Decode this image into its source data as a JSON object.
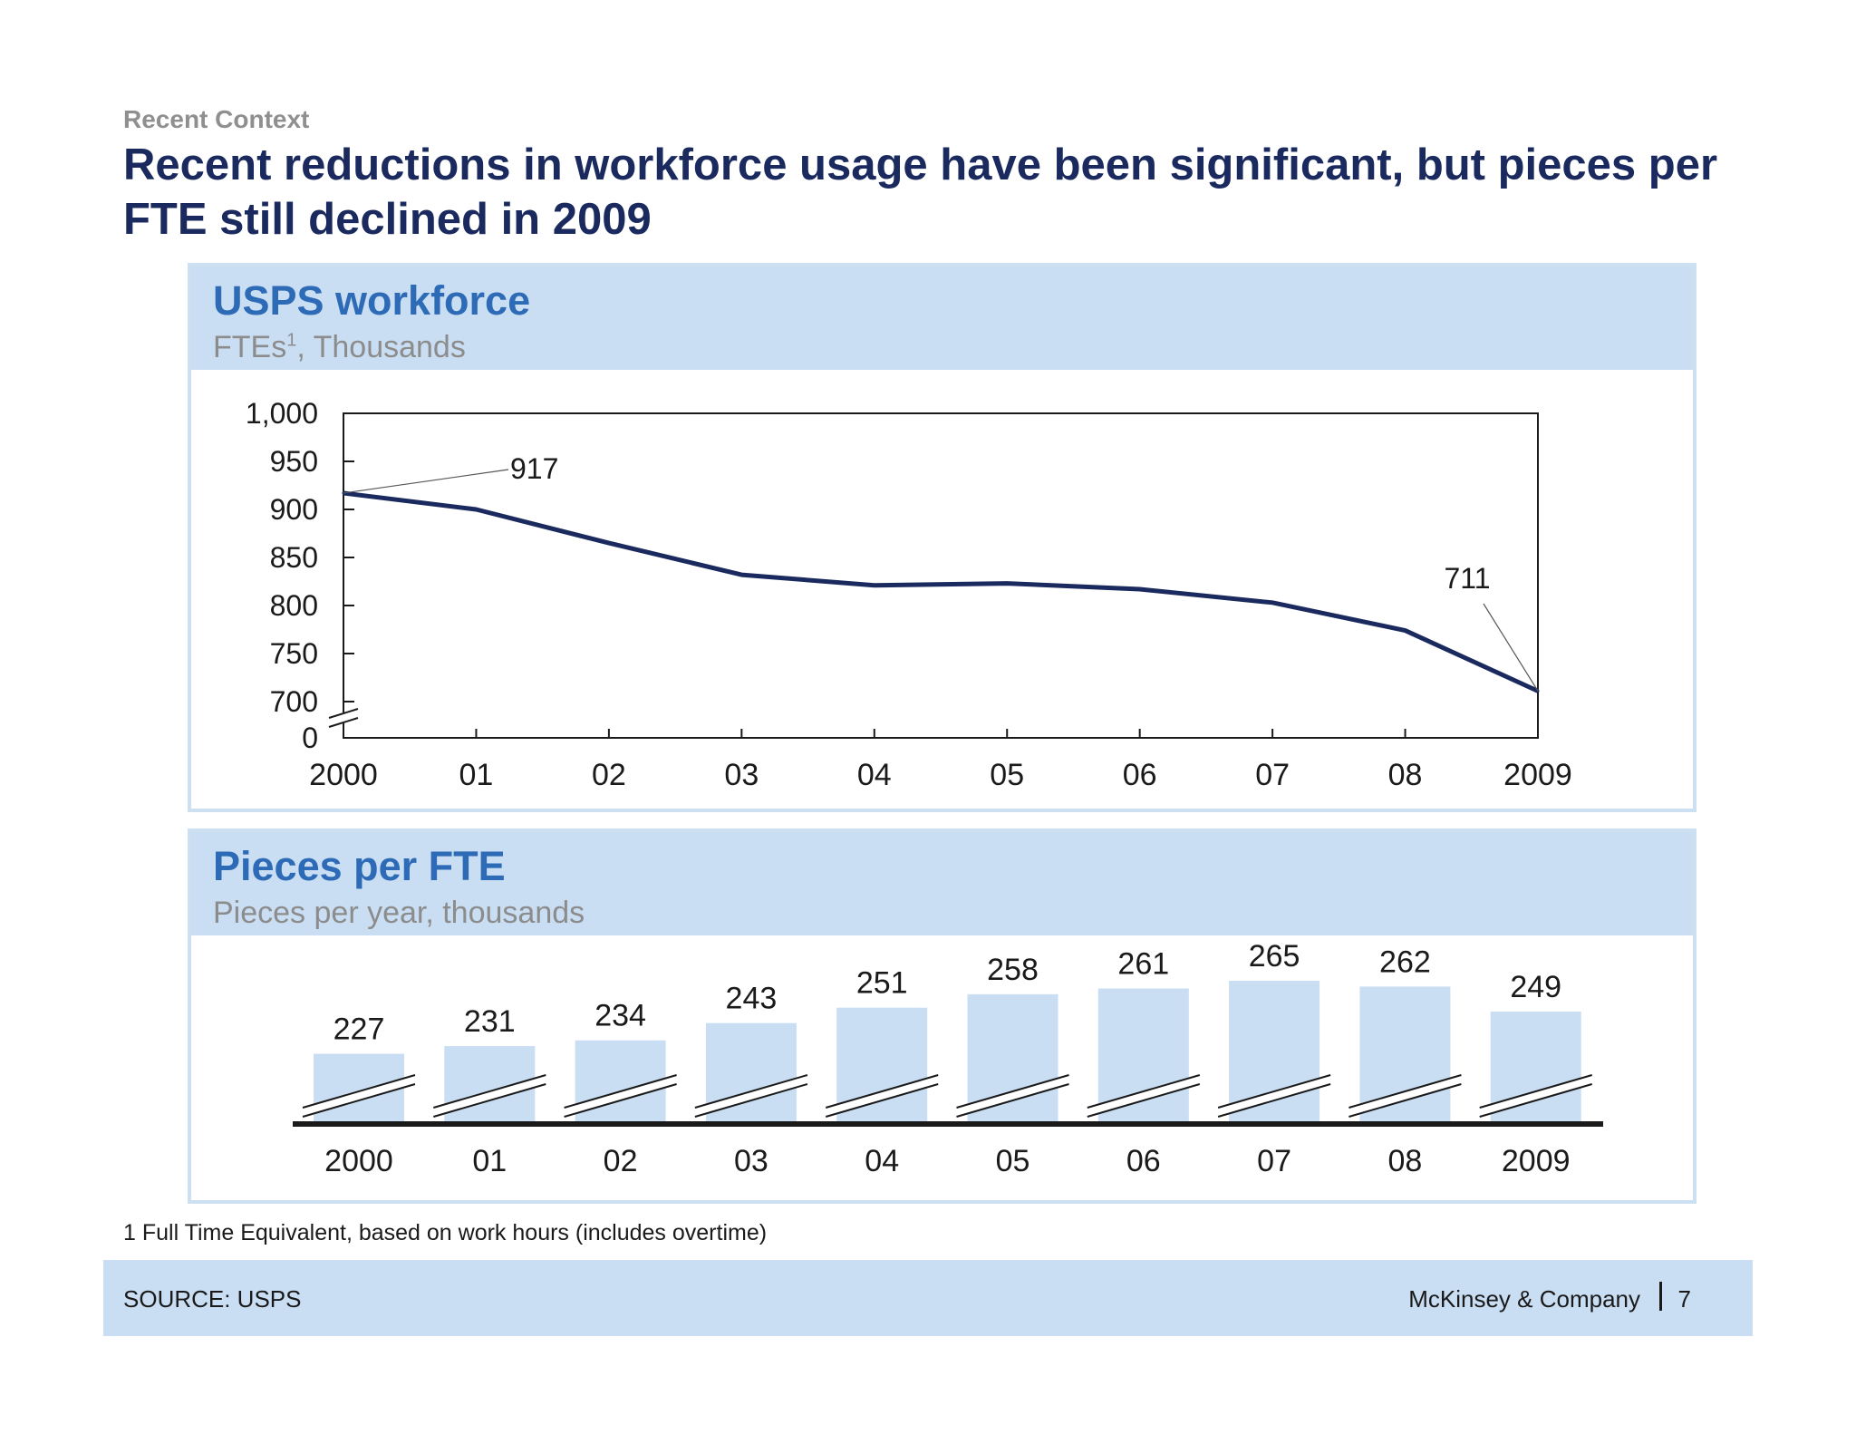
{
  "header": {
    "kicker": "Recent Context",
    "title": "Recent reductions in workforce usage have been significant, but pieces per FTE still declined in 2009"
  },
  "panel1": {
    "title": "USPS workforce",
    "subtitle_main": "FTEs",
    "subtitle_sup": "1",
    "subtitle_rest": ", Thousands"
  },
  "panel2": {
    "title": "Pieces per FTE",
    "subtitle": "Pieces per year, thousands"
  },
  "footnote": "1 Full Time Equivalent, based on work hours (includes overtime)",
  "footer": {
    "source": "SOURCE: USPS",
    "brand": "McKinsey & Company",
    "page": "7"
  },
  "colors": {
    "line": "#1b2a5e",
    "bar": "#c9def3",
    "accent": "#2e6bb6",
    "band": "#c9def3"
  },
  "chart_data": [
    {
      "type": "line",
      "title": "USPS workforce",
      "subtitle": "FTEs1, Thousands",
      "x": [
        "2000",
        "01",
        "02",
        "03",
        "04",
        "05",
        "06",
        "07",
        "08",
        "2009"
      ],
      "values": [
        917,
        900,
        865,
        832,
        821,
        823,
        817,
        803,
        774,
        711
      ],
      "annotations": [
        {
          "x": "2000",
          "label": "917"
        },
        {
          "x": "2009",
          "label": "711"
        }
      ],
      "ylim": [
        700,
        1000
      ],
      "yticks": [
        "1,000",
        "950",
        "900",
        "850",
        "800",
        "750",
        "700",
        "0"
      ],
      "axis_break": true,
      "grid": false
    },
    {
      "type": "bar",
      "title": "Pieces per FTE",
      "subtitle": "Pieces per year, thousands",
      "categories": [
        "2000",
        "01",
        "02",
        "03",
        "04",
        "05",
        "06",
        "07",
        "08",
        "2009"
      ],
      "values": [
        227,
        231,
        234,
        243,
        251,
        258,
        261,
        265,
        262,
        249
      ],
      "axis_break": true,
      "grid": false
    }
  ]
}
